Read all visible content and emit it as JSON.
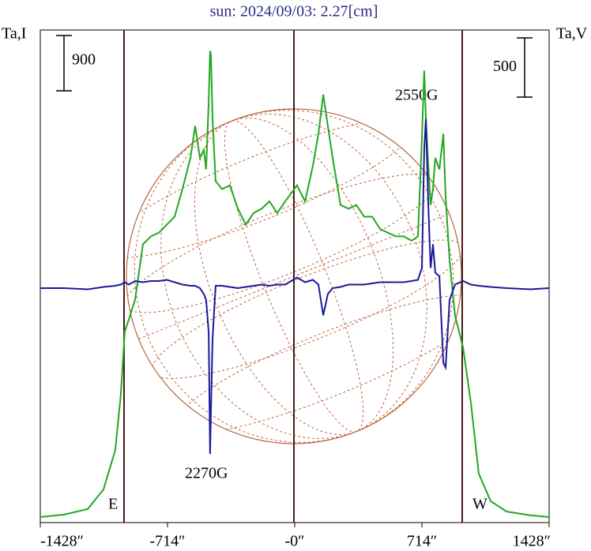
{
  "chart_data": {
    "type": "line",
    "title": "sun: 2024/09/03: 2.27[cm]",
    "y_label": "Ta,I",
    "y2_label": "Ta,V",
    "scale_bar": 900,
    "scale_bar_y2": 500,
    "annotations": [
      "2550G",
      "2270G"
    ],
    "limb_labels": [
      "E",
      "W"
    ],
    "xlim": [
      -1428,
      1428
    ],
    "xticks": [
      {
        "value": -1428,
        "label": "-1428″"
      },
      {
        "value": -714,
        "label": "-714″"
      },
      {
        "value": 0,
        "label": "-0″"
      },
      {
        "value": 714,
        "label": "714″"
      },
      {
        "value": 1428,
        "label": "1428″"
      }
    ],
    "ylim": [
      0,
      8020
    ],
    "y2lim": [
      -2000,
      2160
    ],
    "x": [
      -1428,
      -1295,
      -1162,
      -1073,
      -1007,
      -976,
      -954,
      -931,
      -896,
      -852,
      -807,
      -763,
      -718,
      -674,
      -630,
      -585,
      -559,
      -532,
      -510,
      -497,
      -483,
      -475,
      -470,
      -461,
      -444,
      -408,
      -364,
      -319,
      -275,
      -231,
      -186,
      -142,
      -98,
      -53,
      13,
      58,
      102,
      133,
      160,
      186,
      213,
      257,
      302,
      346,
      390,
      435,
      479,
      523,
      568,
      612,
      656,
      692,
      714,
      727,
      736,
      750,
      763,
      776,
      789,
      812,
      834,
      847,
      869,
      900,
      945,
      989,
      1033,
      1100,
      1189,
      1322,
      1428
    ],
    "series": [
      {
        "name": "Ta,I",
        "color": "#22a822",
        "values": [
          90,
          130,
          220,
          540,
          1180,
          2080,
          3110,
          3310,
          3630,
          4530,
          4660,
          4720,
          4850,
          4980,
          5430,
          5940,
          6460,
          5940,
          6070,
          5750,
          6840,
          7680,
          7610,
          6580,
          5560,
          5430,
          5490,
          5110,
          4850,
          5040,
          5110,
          5230,
          5040,
          5230,
          5490,
          5230,
          5810,
          6330,
          6970,
          6460,
          5940,
          5170,
          5110,
          5170,
          4980,
          4980,
          4780,
          4720,
          4660,
          4660,
          4590,
          4660,
          6260,
          7360,
          6580,
          5810,
          5170,
          5430,
          5940,
          5750,
          6330,
          5300,
          4270,
          3370,
          2850,
          1950,
          800,
          350,
          180,
          120,
          90
        ]
      },
      {
        "name": "Ta,V",
        "color": "#1a1a9a",
        "axis": "y2",
        "values": [
          -20,
          -20,
          -30,
          -10,
          0,
          10,
          30,
          10,
          40,
          30,
          40,
          40,
          50,
          30,
          10,
          0,
          0,
          -20,
          -70,
          -120,
          -390,
          -1420,
          -1050,
          -450,
          0,
          0,
          -10,
          -20,
          -10,
          0,
          10,
          0,
          10,
          10,
          70,
          30,
          50,
          10,
          -250,
          -70,
          -20,
          -10,
          10,
          10,
          10,
          20,
          30,
          30,
          30,
          30,
          40,
          50,
          150,
          1150,
          1410,
          680,
          150,
          350,
          110,
          80,
          -650,
          -690,
          -120,
          10,
          40,
          10,
          0,
          -10,
          -20,
          -30,
          -20
        ]
      }
    ]
  }
}
